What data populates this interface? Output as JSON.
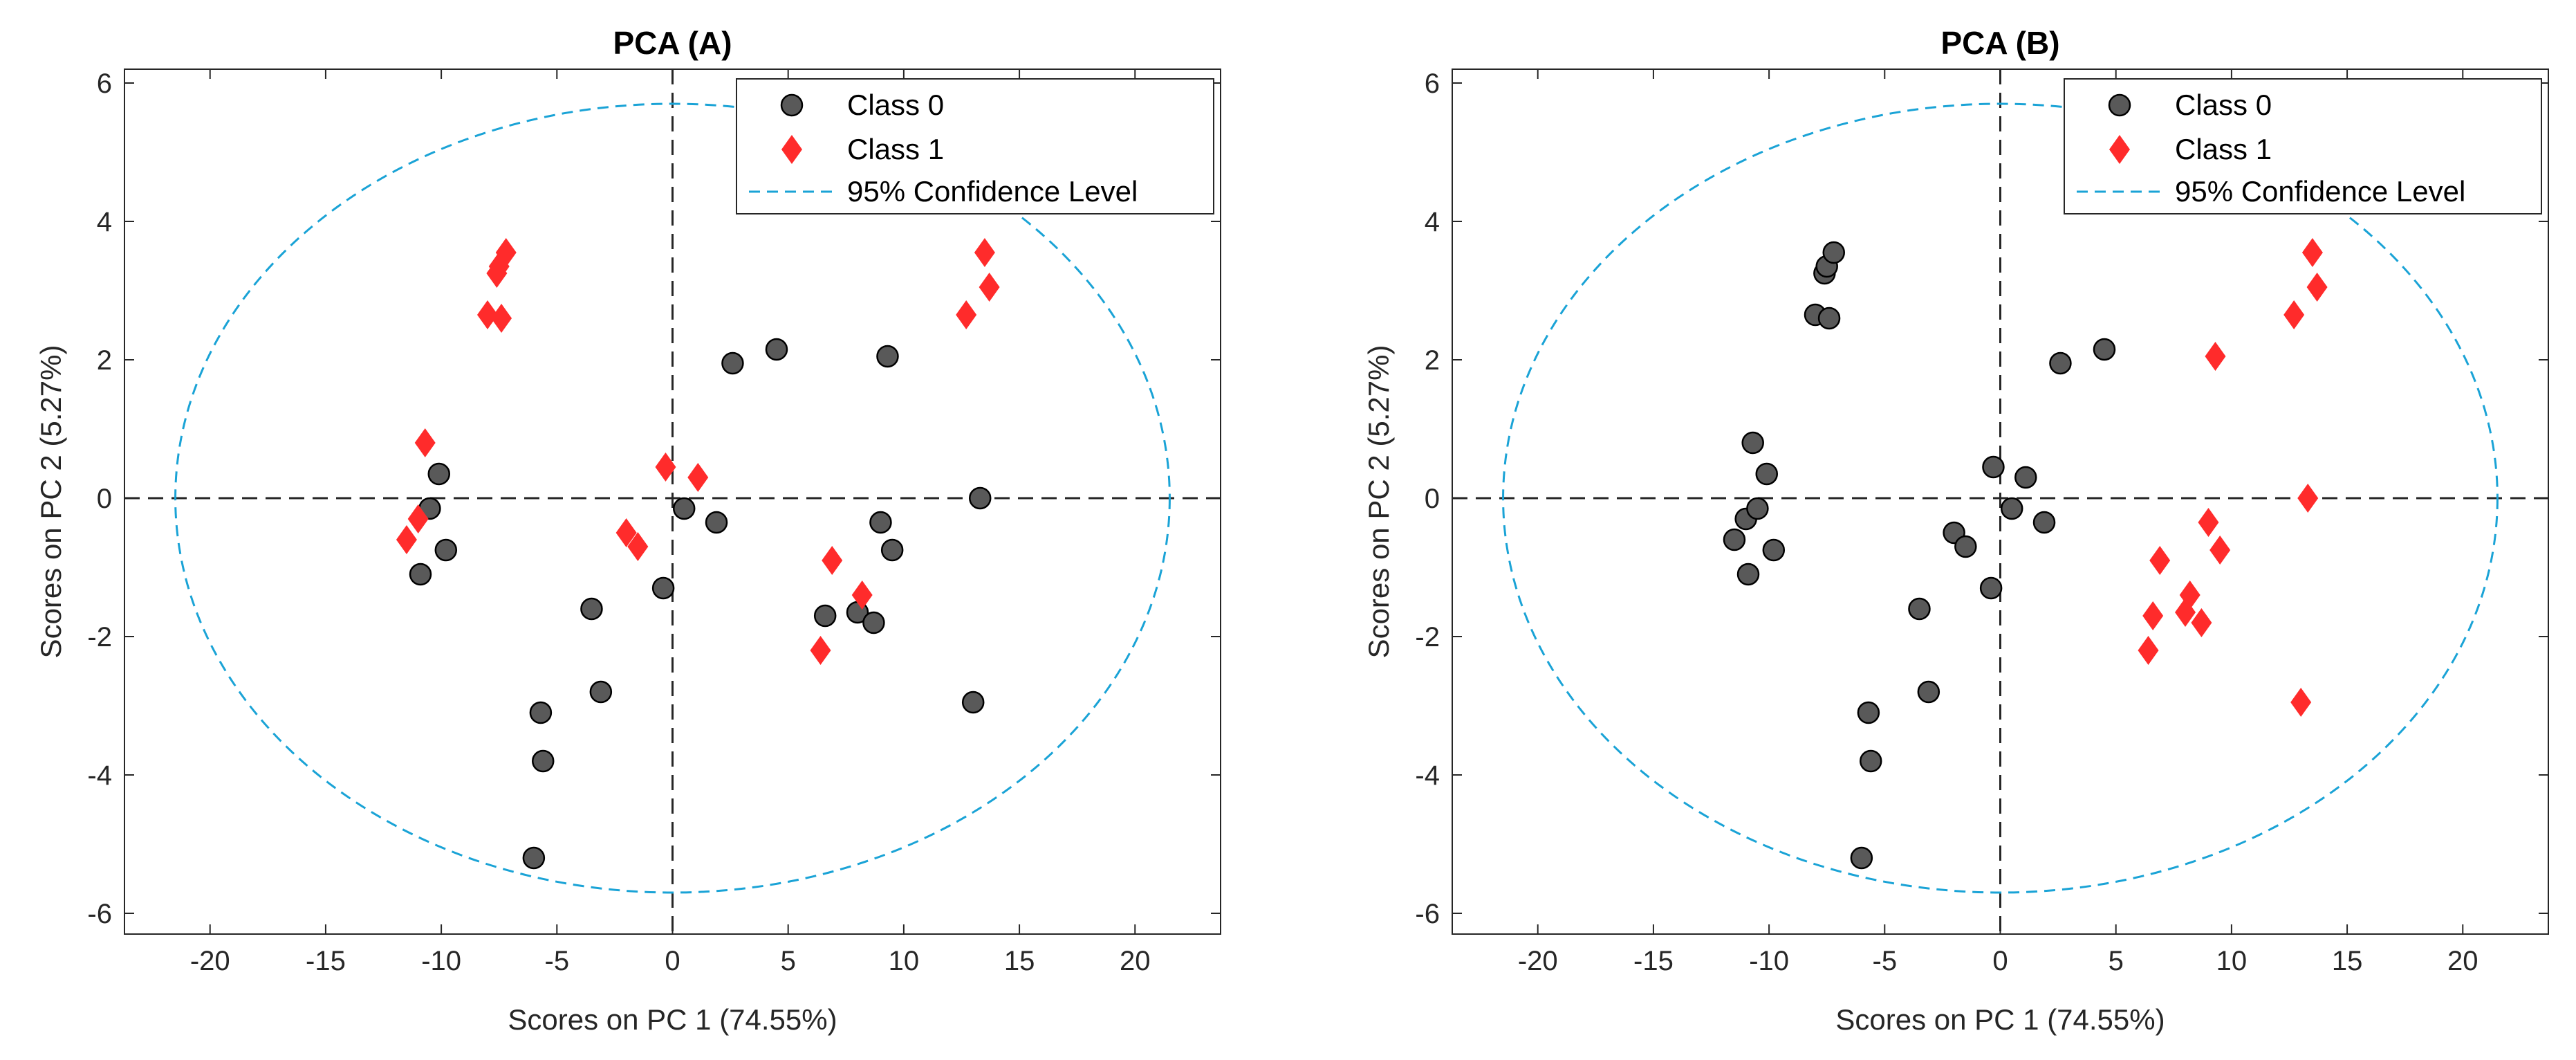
{
  "chart_data": [
    {
      "type": "scatter",
      "title": "PCA (A)",
      "xlabel": "Scores on PC 1 (74.55%)",
      "ylabel": "Scores on PC 2 (5.27%)",
      "xlim": [
        -23.7,
        23.7
      ],
      "ylim": [
        -6.3,
        6.2
      ],
      "xticks": [
        -20,
        -15,
        -10,
        -5,
        0,
        5,
        10,
        15,
        20
      ],
      "yticks": [
        -6,
        -4,
        -2,
        0,
        2,
        4,
        6
      ],
      "xtick_labels": [
        "-20",
        "-15",
        "-10",
        "-5",
        "0",
        "5",
        "10",
        "15",
        "20"
      ],
      "ytick_labels": [
        "-6",
        "-4",
        "-2",
        "0",
        "2",
        "4",
        "6"
      ],
      "grid": false,
      "legend_position": "top-right",
      "legend": [
        "Class 0",
        "Class 1",
        "95% Confidence Level"
      ],
      "confidence_ellipse": {
        "cx": 0,
        "cy": 0,
        "rx": 21.5,
        "ry": 5.7
      },
      "series": [
        {
          "name": "Class 0",
          "marker": "circle",
          "color": "#595959",
          "points": [
            [
              -10.9,
              -1.1
            ],
            [
              -10.5,
              -0.15
            ],
            [
              -10.1,
              0.35
            ],
            [
              -9.8,
              -0.75
            ],
            [
              -6.0,
              -5.2
            ],
            [
              -5.7,
              -3.1
            ],
            [
              -5.6,
              -3.8
            ],
            [
              -3.5,
              -1.6
            ],
            [
              -3.1,
              -2.8
            ],
            [
              -0.4,
              -1.3
            ],
            [
              0.5,
              -0.15
            ],
            [
              1.9,
              -0.35
            ],
            [
              2.6,
              1.95
            ],
            [
              4.5,
              2.15
            ],
            [
              6.6,
              -1.7
            ],
            [
              8.0,
              -1.65
            ],
            [
              8.7,
              -1.8
            ],
            [
              9.0,
              -0.35
            ],
            [
              9.3,
              2.05
            ],
            [
              9.5,
              -0.75
            ],
            [
              13.0,
              -2.95
            ],
            [
              13.3,
              0.0
            ]
          ]
        },
        {
          "name": "Class 1",
          "marker": "diamond",
          "color": "#ff2b2b",
          "points": [
            [
              -11.5,
              -0.6
            ],
            [
              -11.0,
              -0.3
            ],
            [
              -10.7,
              0.8
            ],
            [
              -8.0,
              2.65
            ],
            [
              -7.6,
              3.25
            ],
            [
              -7.5,
              3.35
            ],
            [
              -7.4,
              2.6
            ],
            [
              -7.2,
              3.55
            ],
            [
              -2.0,
              -0.5
            ],
            [
              -1.5,
              -0.7
            ],
            [
              -0.3,
              0.45
            ],
            [
              1.1,
              0.3
            ],
            [
              6.4,
              -2.2
            ],
            [
              6.9,
              -0.9
            ],
            [
              8.2,
              -1.4
            ],
            [
              12.7,
              2.65
            ],
            [
              13.5,
              3.55
            ],
            [
              13.7,
              3.05
            ]
          ]
        }
      ]
    },
    {
      "type": "scatter",
      "title": "PCA (B)",
      "xlabel": "Scores on PC 1 (74.55%)",
      "ylabel": "Scores on PC 2 (5.27%)",
      "xlim": [
        -23.7,
        23.7
      ],
      "ylim": [
        -6.3,
        6.2
      ],
      "xticks": [
        -20,
        -15,
        -10,
        -5,
        0,
        5,
        10,
        15,
        20
      ],
      "yticks": [
        -6,
        -4,
        -2,
        0,
        2,
        4,
        6
      ],
      "xtick_labels": [
        "-20",
        "-15",
        "-10",
        "-5",
        "0",
        "5",
        "10",
        "15",
        "20"
      ],
      "ytick_labels": [
        "-6",
        "-4",
        "-2",
        "0",
        "2",
        "4",
        "6"
      ],
      "grid": false,
      "legend_position": "top-right",
      "legend": [
        "Class 0",
        "Class 1",
        "95% Confidence Level"
      ],
      "confidence_ellipse": {
        "cx": 0,
        "cy": 0,
        "rx": 21.5,
        "ry": 5.7
      },
      "series": [
        {
          "name": "Class 0",
          "marker": "circle",
          "color": "#595959",
          "points": [
            [
              -11.5,
              -0.6
            ],
            [
              -11.0,
              -0.3
            ],
            [
              -10.9,
              -1.1
            ],
            [
              -10.7,
              0.8
            ],
            [
              -10.5,
              -0.15
            ],
            [
              -10.1,
              0.35
            ],
            [
              -9.8,
              -0.75
            ],
            [
              -8.0,
              2.65
            ],
            [
              -7.6,
              3.25
            ],
            [
              -7.5,
              3.35
            ],
            [
              -7.4,
              2.6
            ],
            [
              -7.2,
              3.55
            ],
            [
              -6.0,
              -5.2
            ],
            [
              -5.7,
              -3.1
            ],
            [
              -5.6,
              -3.8
            ],
            [
              -3.5,
              -1.6
            ],
            [
              -3.1,
              -2.8
            ],
            [
              -2.0,
              -0.5
            ],
            [
              -1.5,
              -0.7
            ],
            [
              -0.4,
              -1.3
            ],
            [
              -0.3,
              0.45
            ],
            [
              0.5,
              -0.15
            ],
            [
              1.1,
              0.3
            ],
            [
              1.9,
              -0.35
            ],
            [
              2.6,
              1.95
            ],
            [
              4.5,
              2.15
            ]
          ]
        },
        {
          "name": "Class 1",
          "marker": "diamond",
          "color": "#ff2b2b",
          "points": [
            [
              6.4,
              -2.2
            ],
            [
              6.6,
              -1.7
            ],
            [
              6.9,
              -0.9
            ],
            [
              8.0,
              -1.65
            ],
            [
              8.2,
              -1.4
            ],
            [
              8.7,
              -1.8
            ],
            [
              9.0,
              -0.35
            ],
            [
              9.3,
              2.05
            ],
            [
              9.5,
              -0.75
            ],
            [
              12.7,
              2.65
            ],
            [
              13.0,
              -2.95
            ],
            [
              13.3,
              0.0
            ],
            [
              13.5,
              3.55
            ],
            [
              13.7,
              3.05
            ]
          ]
        }
      ]
    }
  ]
}
